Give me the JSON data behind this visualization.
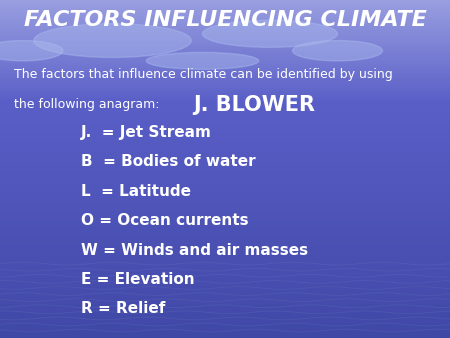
{
  "title": "FACTORS INFLUENCING CLIMATE",
  "subtitle_line1": "The factors that influence climate can be identified by using",
  "subtitle_line2": "the following anagram:",
  "anagram": "J. BLOWER",
  "items": [
    "J.  = Jet Stream",
    "B  = Bodies of water",
    "L  = Latitude",
    "O = Ocean currents",
    "W = Winds and air masses",
    "E = Elevation",
    "R = Relief"
  ],
  "text_color": "#ffffff",
  "title_fontsize": 16,
  "subtitle_fontsize": 9,
  "anagram_fontsize": 15,
  "item_fontsize": 11,
  "fig_width": 4.5,
  "fig_height": 3.38,
  "dpi": 100
}
